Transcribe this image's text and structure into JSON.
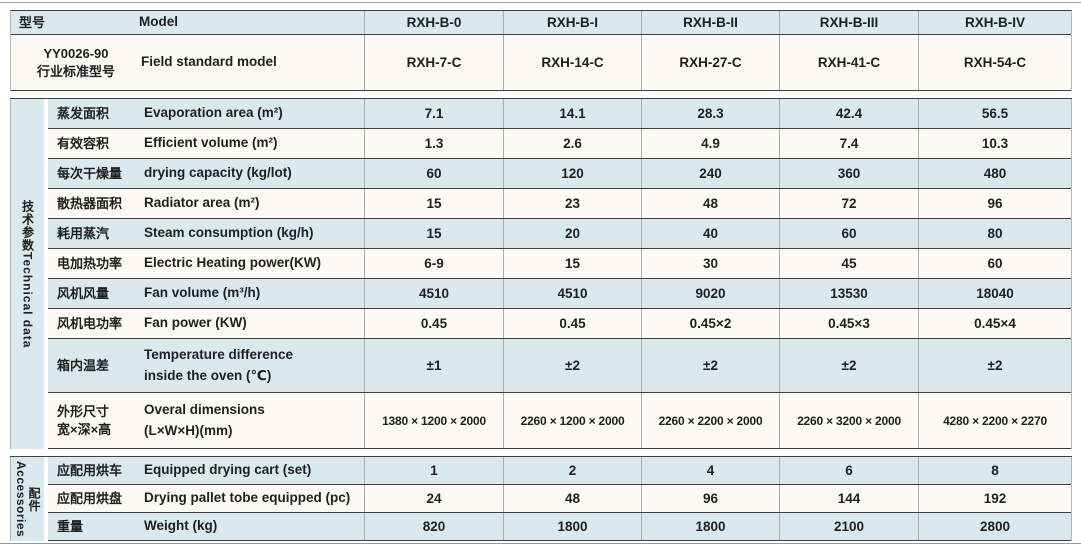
{
  "doc": {
    "kind": "product-specification-table",
    "colors": {
      "row_blue": "#d9e9ee",
      "row_cream": "#fbfaf5",
      "line_dark": "#404040",
      "line_light": "#a8adb0",
      "text": "#1f1f1d"
    }
  },
  "header": {
    "rows": [
      {
        "cn": "型号",
        "en": "Model",
        "values": [
          "RXH-B-0",
          "RXH-B-I",
          "RXH-B-II",
          "RXH-B-III",
          "RXH-B-IV"
        ],
        "cn_center": false,
        "h": "h24"
      },
      {
        "cn": "YY0026-90\n行业标准型号",
        "en": "Field standard model",
        "values": [
          "RXH-7-C",
          "RXH-14-C",
          "RXH-27-C",
          "RXH-41-C",
          "RXH-54-C"
        ],
        "cn_center": true,
        "h": "h56"
      }
    ]
  },
  "sections": [
    {
      "group_cn": "技术参数",
      "group_en": "Technical data",
      "group_style": "inline",
      "rows": [
        {
          "cn": "蒸发面积",
          "en": "Evaporation area (m²)",
          "values": [
            "7.1",
            "14.1",
            "28.3",
            "42.4",
            "56.5"
          ]
        },
        {
          "cn": "有效容积",
          "en": "Efficient volume (m²)",
          "values": [
            "1.3",
            "2.6",
            "4.9",
            "7.4",
            "10.3"
          ]
        },
        {
          "cn": "每次干燥量",
          "en": "drying capacity (kg/lot)",
          "values": [
            "60",
            "120",
            "240",
            "360",
            "480"
          ]
        },
        {
          "cn": "散热器面积",
          "en": "Radiator area (m²)",
          "values": [
            "15",
            "23",
            "48",
            "72",
            "96"
          ]
        },
        {
          "cn": "耗用蒸汽",
          "en": "Steam consumption (kg/h)",
          "values": [
            "15",
            "20",
            "40",
            "60",
            "80"
          ]
        },
        {
          "cn": "电加热功率",
          "en": "Electric Heating power(KW)",
          "values": [
            "6-9",
            "15",
            "30",
            "45",
            "60"
          ]
        },
        {
          "cn": "风机风量",
          "en": "Fan volume (m³/h)",
          "values": [
            "4510",
            "4510",
            "9020",
            "13530",
            "18040"
          ]
        },
        {
          "cn": "风机电功率",
          "en": "Fan power (KW)",
          "values": [
            "0.45",
            "0.45",
            "0.45×2",
            "0.45×3",
            "0.45×4"
          ]
        },
        {
          "cn": "箱内温差",
          "en": "Temperature difference\ninside the oven (℃)",
          "values": [
            "±1",
            "±2",
            "±2",
            "±2",
            "±2"
          ],
          "tall": true
        },
        {
          "cn": "外形尺寸\n宽×深×高",
          "en": "Overal dimensions\n(L×W×H)(mm)",
          "values": [
            "1380 × 1200 × 2000",
            "2260 × 1200 × 2000",
            "2260 × 2200 × 2000",
            "2260 × 3200 × 2000",
            "4280 × 2200 × 2270"
          ],
          "tall2": true,
          "small_values": true
        }
      ]
    },
    {
      "group_cn": "配件",
      "group_en": "Accessories",
      "group_style": "pair",
      "rows": [
        {
          "cn": "应配用烘车",
          "en": "Equipped drying cart (set)",
          "values": [
            "1",
            "2",
            "4",
            "6",
            "8"
          ],
          "h28": true
        },
        {
          "cn": "应配用烘盘",
          "en": "Drying pallet tobe equipped (pc)",
          "values": [
            "24",
            "48",
            "96",
            "144",
            "192"
          ],
          "h28": true
        },
        {
          "cn": "重量",
          "en": "Weight (kg)",
          "values": [
            "820",
            "1800",
            "1800",
            "2100",
            "2800"
          ],
          "h28": true
        }
      ]
    }
  ]
}
